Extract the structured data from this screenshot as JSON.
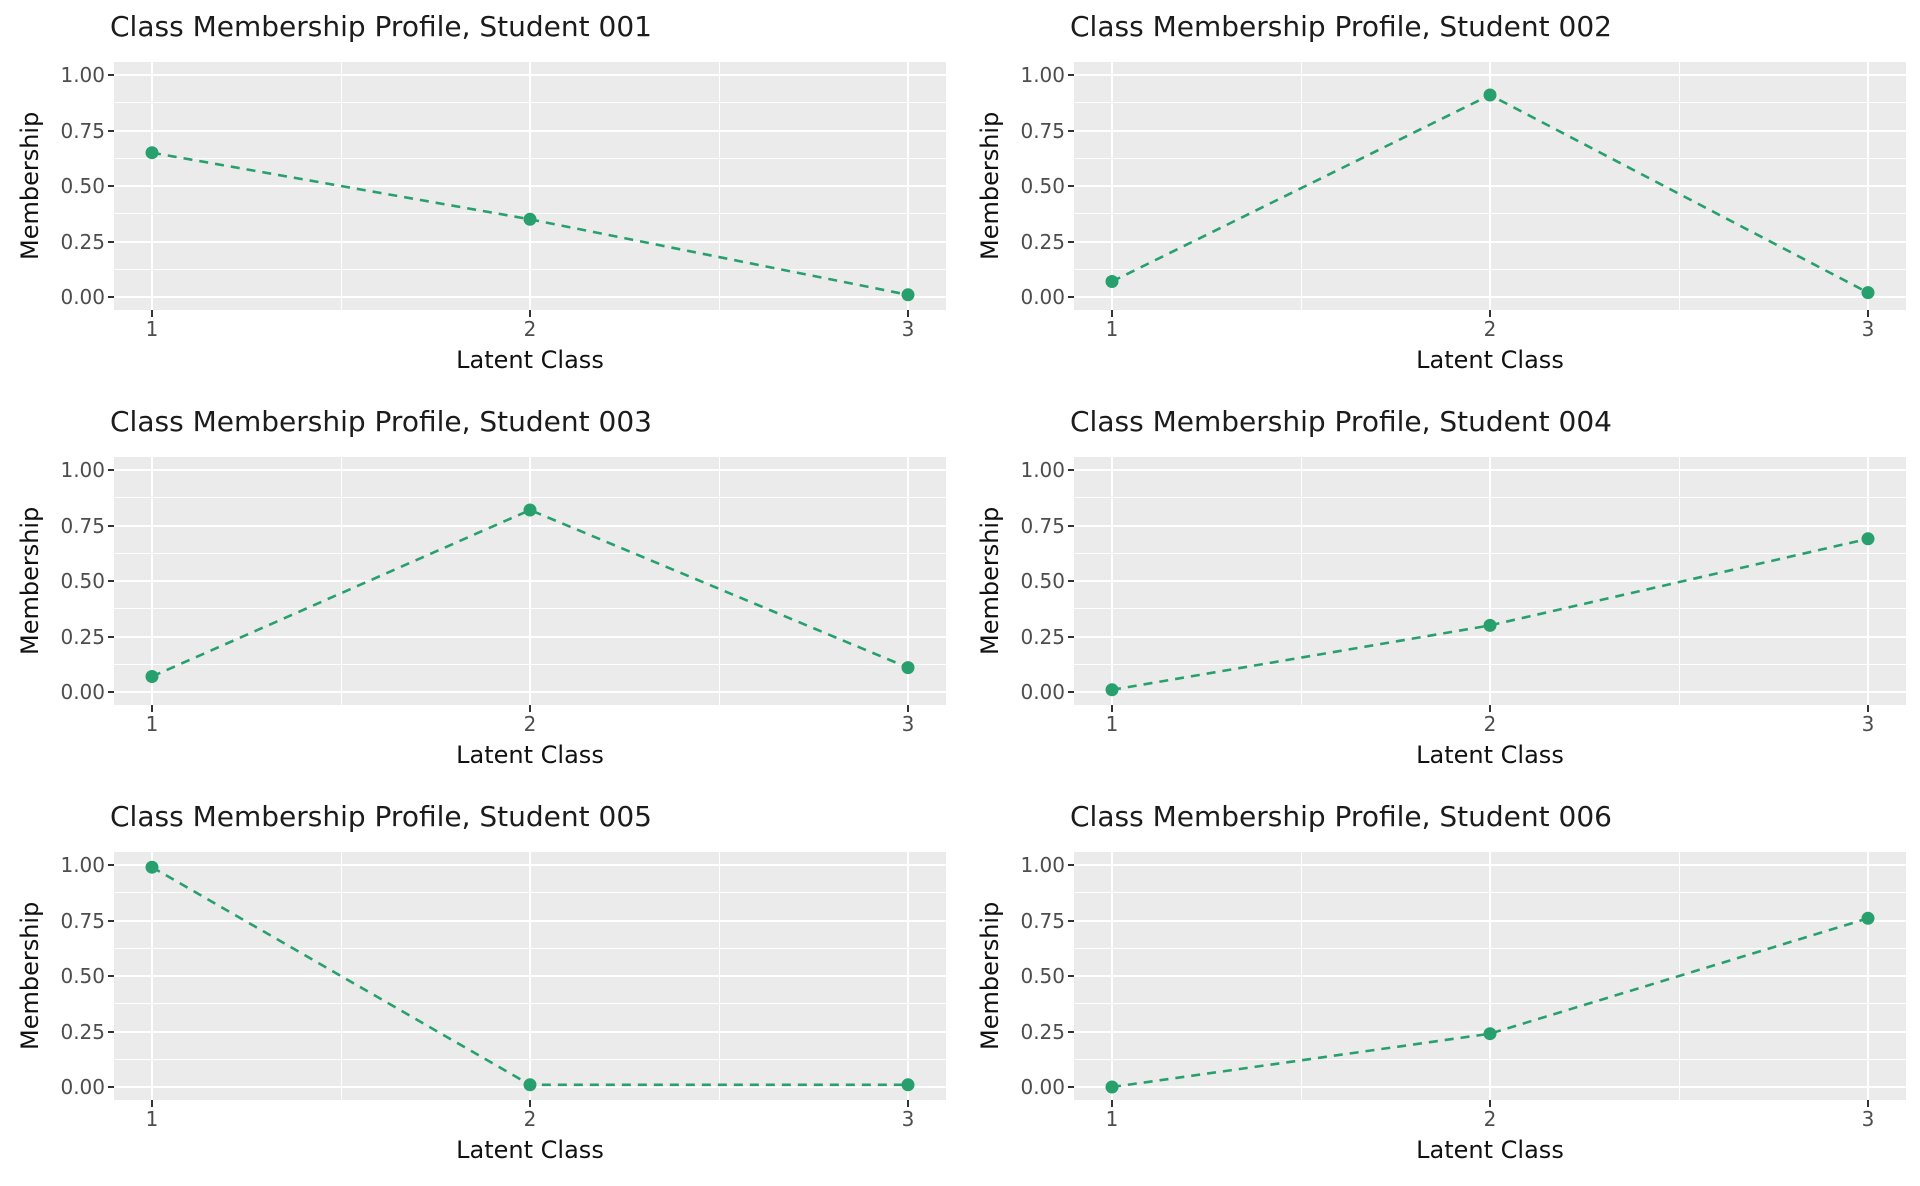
{
  "figure": {
    "background": "#ffffff",
    "panel_background": "#ebebeb",
    "gridline_color": "#ffffff",
    "tick_label_color": "#4d4d4d",
    "text_color": "#1c1c1c",
    "series_color": "#27a06e"
  },
  "chart_data": {
    "type": "line",
    "layout": "small multiples, 3 rows x 2 columns",
    "x": [
      1,
      2,
      3
    ],
    "xlabel": "Latent Class",
    "ylabel": "Membership",
    "ylim": [
      0,
      1
    ],
    "xlim_expanded": [
      0.9,
      3.1
    ],
    "yticks": [
      0.0,
      0.25,
      0.5,
      0.75,
      1.0
    ],
    "ytick_labels": [
      "0.00",
      "0.25",
      "0.50",
      "0.75",
      "1.00"
    ],
    "xtick_labels": [
      "1",
      "2",
      "3"
    ],
    "y_minor_ticks": [
      0.125,
      0.375,
      0.625,
      0.875
    ],
    "x_minor_ticks": [
      1.5,
      2.5
    ],
    "grid": "white major and minor gridlines on gray panel (ggplot style)",
    "legend": "none",
    "line_style": "dashed",
    "marker": "circle",
    "charts": [
      {
        "title": "Class Membership Profile, Student 001",
        "values": [
          0.65,
          0.35,
          0.01
        ]
      },
      {
        "title": "Class Membership Profile, Student 002",
        "values": [
          0.07,
          0.91,
          0.02
        ]
      },
      {
        "title": "Class Membership Profile, Student 003",
        "values": [
          0.07,
          0.82,
          0.11
        ]
      },
      {
        "title": "Class Membership Profile, Student 004",
        "values": [
          0.01,
          0.3,
          0.69
        ]
      },
      {
        "title": "Class Membership Profile, Student 005",
        "values": [
          0.99,
          0.01,
          0.01
        ]
      },
      {
        "title": "Class Membership Profile, Student 006",
        "values": [
          0.0,
          0.24,
          0.76
        ]
      }
    ]
  }
}
